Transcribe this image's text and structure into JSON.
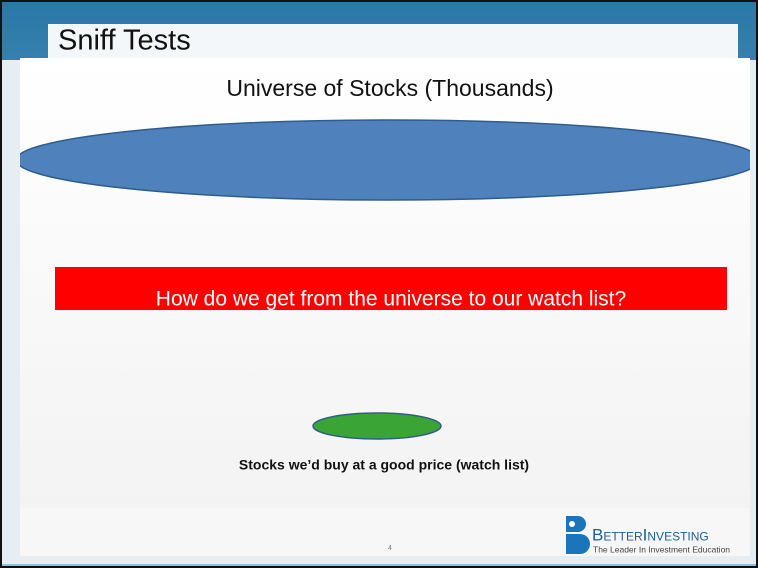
{
  "header": {
    "title": "Sniff Tests"
  },
  "content": {
    "heading": "Universe of Stocks  (Thousands)",
    "question": "How do we get from the universe to our watch list?",
    "caption": "Stocks we’d buy at a good price (watch list)"
  },
  "footer": {
    "page_number": "4",
    "logo": {
      "name": "BetterInvesting",
      "tagline": "The Leader In Investment Education"
    }
  }
}
